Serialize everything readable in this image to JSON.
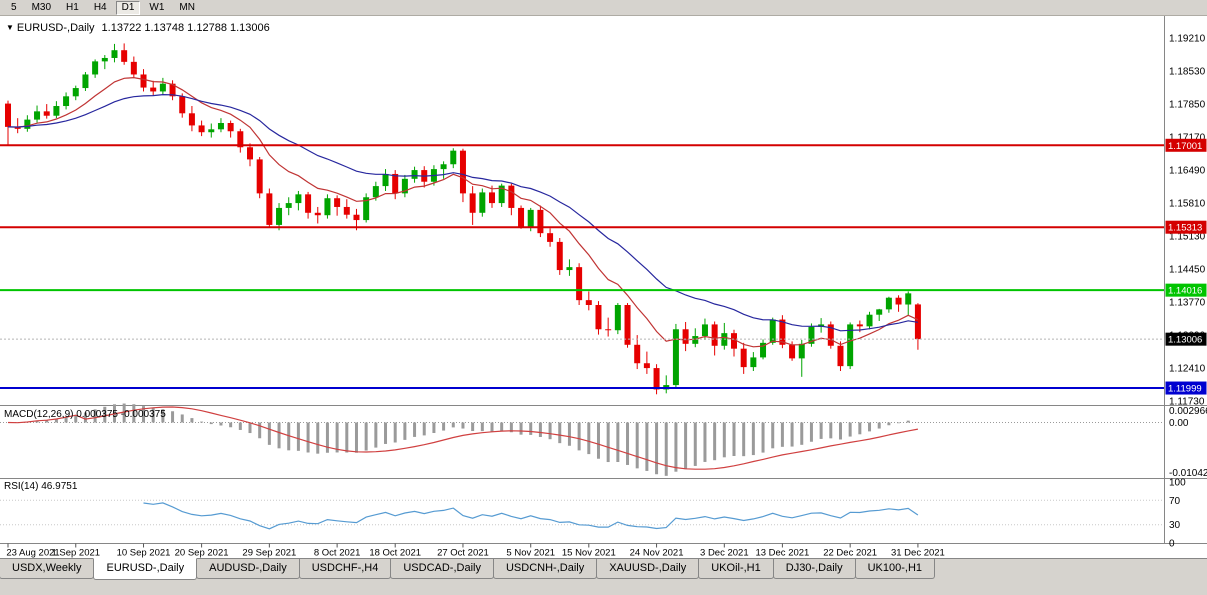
{
  "toolbar": {
    "timeframes": [
      {
        "label": "5",
        "active": false
      },
      {
        "label": "M30",
        "active": false
      },
      {
        "label": "H1",
        "active": false
      },
      {
        "label": "H4",
        "active": false
      },
      {
        "label": "D1",
        "active": true
      },
      {
        "label": "W1",
        "active": false
      },
      {
        "label": "MN",
        "active": false
      }
    ]
  },
  "chart_data": {
    "type": "candlestick",
    "symbol_title": "EURUSD-,Daily",
    "ohlc_readout": "1.13722 1.13748 1.12788 1.13006",
    "last_ohlc": {
      "open": 1.13722,
      "high": 1.13748,
      "low": 1.12788,
      "close": 1.13006
    },
    "colors": {
      "up": "#00a400",
      "down": "#e60000"
    },
    "price_axis": {
      "top_price": 1.195,
      "bottom_price": 1.1167,
      "labels": [
        "1.19210",
        "1.18530",
        "1.17850",
        "1.17170",
        "1.16490",
        "1.15810",
        "1.15130",
        "1.14450",
        "1.13770",
        "1.13090",
        "1.12410",
        "1.11730"
      ]
    },
    "hlines": [
      {
        "value": 1.17001,
        "label": "1.17001",
        "color": "#d40000",
        "width": 2
      },
      {
        "value": 1.15313,
        "label": "1.15313",
        "color": "#d40000",
        "width": 2
      },
      {
        "value": 1.14016,
        "label": "1.14016",
        "color": "#00c400",
        "width": 2
      },
      {
        "value": 1.11999,
        "label": "1.11999",
        "color": "#0000d0",
        "width": 2
      }
    ],
    "bid": {
      "value": 1.13006,
      "label": "1.13006",
      "tag_color": "#000000"
    },
    "moving_averages": [
      {
        "period": 10,
        "method": "ema",
        "color": "#c03434"
      },
      {
        "period": 24,
        "method": "ema",
        "color": "#27279e"
      }
    ],
    "candles": [
      [
        1.1786,
        1.1792,
        1.1699,
        1.1738
      ],
      [
        1.1738,
        1.1756,
        1.1725,
        1.1734
      ],
      [
        1.1734,
        1.1762,
        1.1728,
        1.1753
      ],
      [
        1.1753,
        1.1782,
        1.1747,
        1.177
      ],
      [
        1.177,
        1.1785,
        1.1755,
        1.1761
      ],
      [
        1.1761,
        1.1791,
        1.1756,
        1.1781
      ],
      [
        1.1781,
        1.1809,
        1.1774,
        1.1801
      ],
      [
        1.1801,
        1.1823,
        1.1793,
        1.1818
      ],
      [
        1.1818,
        1.1851,
        1.1812,
        1.1846
      ],
      [
        1.1846,
        1.1877,
        1.1839,
        1.1873
      ],
      [
        1.1873,
        1.1886,
        1.1857,
        1.188
      ],
      [
        1.188,
        1.1909,
        1.1871,
        1.1896
      ],
      [
        1.1896,
        1.191,
        1.1866,
        1.1872
      ],
      [
        1.1872,
        1.1883,
        1.1839,
        1.1846
      ],
      [
        1.1846,
        1.1857,
        1.1811,
        1.1819
      ],
      [
        1.1819,
        1.1833,
        1.1803,
        1.1811
      ],
      [
        1.1811,
        1.1839,
        1.1805,
        1.1827
      ],
      [
        1.1827,
        1.1834,
        1.1793,
        1.1801
      ],
      [
        1.1801,
        1.1807,
        1.1757,
        1.1766
      ],
      [
        1.1766,
        1.1781,
        1.1729,
        1.1741
      ],
      [
        1.1741,
        1.1751,
        1.1719,
        1.1727
      ],
      [
        1.1727,
        1.1745,
        1.1716,
        1.1733
      ],
      [
        1.1733,
        1.1756,
        1.1727,
        1.1746
      ],
      [
        1.1746,
        1.1751,
        1.1716,
        1.1729
      ],
      [
        1.1729,
        1.1734,
        1.1685,
        1.1696
      ],
      [
        1.1696,
        1.1704,
        1.1657,
        1.1671
      ],
      [
        1.1671,
        1.1676,
        1.1591,
        1.1601
      ],
      [
        1.1601,
        1.1611,
        1.153,
        1.1536
      ],
      [
        1.1536,
        1.1581,
        1.1525,
        1.1571
      ],
      [
        1.1571,
        1.1593,
        1.1556,
        1.1581
      ],
      [
        1.1581,
        1.1606,
        1.1566,
        1.1599
      ],
      [
        1.1599,
        1.1604,
        1.1549,
        1.1561
      ],
      [
        1.1561,
        1.1573,
        1.1539,
        1.1556
      ],
      [
        1.1556,
        1.1599,
        1.1549,
        1.1591
      ],
      [
        1.1591,
        1.1597,
        1.1555,
        1.1573
      ],
      [
        1.1573,
        1.1589,
        1.1549,
        1.1557
      ],
      [
        1.1557,
        1.1569,
        1.1525,
        1.1546
      ],
      [
        1.1546,
        1.1601,
        1.1541,
        1.1593
      ],
      [
        1.1593,
        1.1625,
        1.1586,
        1.1616
      ],
      [
        1.1616,
        1.1651,
        1.1606,
        1.1641
      ],
      [
        1.1641,
        1.1649,
        1.1589,
        1.1601
      ],
      [
        1.1601,
        1.1639,
        1.1593,
        1.1631
      ],
      [
        1.1631,
        1.1656,
        1.1623,
        1.1649
      ],
      [
        1.1649,
        1.1657,
        1.1613,
        1.1625
      ],
      [
        1.1625,
        1.1659,
        1.1617,
        1.1651
      ],
      [
        1.1651,
        1.1667,
        1.1631,
        1.1661
      ],
      [
        1.1661,
        1.1694,
        1.1653,
        1.1689
      ],
      [
        1.1689,
        1.1693,
        1.1583,
        1.1601
      ],
      [
        1.1601,
        1.1616,
        1.1536,
        1.1561
      ],
      [
        1.1561,
        1.1611,
        1.1553,
        1.1603
      ],
      [
        1.1603,
        1.1617,
        1.1571,
        1.1581
      ],
      [
        1.1581,
        1.1621,
        1.1573,
        1.1617
      ],
      [
        1.1617,
        1.1621,
        1.1556,
        1.1571
      ],
      [
        1.1571,
        1.1576,
        1.1528,
        1.1531
      ],
      [
        1.1531,
        1.1571,
        1.1523,
        1.1567
      ],
      [
        1.1567,
        1.1576,
        1.1511,
        1.1519
      ],
      [
        1.1519,
        1.1529,
        1.1491,
        1.1501
      ],
      [
        1.1501,
        1.1509,
        1.1433,
        1.1443
      ],
      [
        1.1443,
        1.1465,
        1.1431,
        1.1449
      ],
      [
        1.1449,
        1.1457,
        1.1371,
        1.1381
      ],
      [
        1.1381,
        1.1399,
        1.136,
        1.1371
      ],
      [
        1.1371,
        1.1379,
        1.131,
        1.1321
      ],
      [
        1.1321,
        1.1345,
        1.1306,
        1.1319
      ],
      [
        1.1319,
        1.1375,
        1.1311,
        1.1371
      ],
      [
        1.1371,
        1.1375,
        1.1283,
        1.1289
      ],
      [
        1.1289,
        1.1309,
        1.1239,
        1.1251
      ],
      [
        1.1251,
        1.1275,
        1.1229,
        1.1241
      ],
      [
        1.1241,
        1.1249,
        1.1187,
        1.1197
      ],
      [
        1.1197,
        1.1226,
        1.1189,
        1.1206
      ],
      [
        1.1206,
        1.1332,
        1.12,
        1.1321
      ],
      [
        1.1321,
        1.1336,
        1.1276,
        1.1291
      ],
      [
        1.1291,
        1.1323,
        1.1284,
        1.1307
      ],
      [
        1.1307,
        1.1343,
        1.1299,
        1.1331
      ],
      [
        1.1331,
        1.1337,
        1.1267,
        1.1287
      ],
      [
        1.1287,
        1.1334,
        1.1279,
        1.1313
      ],
      [
        1.1313,
        1.132,
        1.1265,
        1.1281
      ],
      [
        1.1281,
        1.1293,
        1.1229,
        1.1243
      ],
      [
        1.1243,
        1.1274,
        1.1235,
        1.1263
      ],
      [
        1.1263,
        1.13,
        1.1259,
        1.1293
      ],
      [
        1.1293,
        1.1345,
        1.1289,
        1.1341
      ],
      [
        1.1341,
        1.135,
        1.1282,
        1.1289
      ],
      [
        1.1289,
        1.1296,
        1.1256,
        1.1261
      ],
      [
        1.1261,
        1.1299,
        1.1223,
        1.1291
      ],
      [
        1.1291,
        1.1333,
        1.1285,
        1.1326
      ],
      [
        1.1326,
        1.1344,
        1.1314,
        1.1331
      ],
      [
        1.1331,
        1.1337,
        1.1281,
        1.1287
      ],
      [
        1.1287,
        1.1296,
        1.1235,
        1.1245
      ],
      [
        1.1245,
        1.1335,
        1.1239,
        1.1331
      ],
      [
        1.1331,
        1.1339,
        1.1315,
        1.1327
      ],
      [
        1.1327,
        1.1357,
        1.1321,
        1.1351
      ],
      [
        1.1351,
        1.1363,
        1.1338,
        1.1362
      ],
      [
        1.1362,
        1.1388,
        1.1355,
        1.1386
      ],
      [
        1.1386,
        1.1391,
        1.1357,
        1.1372
      ],
      [
        1.1372,
        1.1399,
        1.1349,
        1.1395
      ],
      [
        1.13722,
        1.13748,
        1.12788,
        1.13006
      ]
    ],
    "date_labels": [
      {
        "i": 0,
        "t": "23 Aug 2021"
      },
      {
        "i": 7,
        "t": "1 Sep 2021"
      },
      {
        "i": 14,
        "t": "10 Sep 2021"
      },
      {
        "i": 20,
        "t": "20 Sep 2021"
      },
      {
        "i": 27,
        "t": "29 Sep 2021"
      },
      {
        "i": 34,
        "t": "8 Oct 2021"
      },
      {
        "i": 40,
        "t": "18 Oct 2021"
      },
      {
        "i": 47,
        "t": "27 Oct 2021"
      },
      {
        "i": 54,
        "t": "5 Nov 2021"
      },
      {
        "i": 60,
        "t": "15 Nov 2021"
      },
      {
        "i": 67,
        "t": "24 Nov 2021"
      },
      {
        "i": 74,
        "t": "3 Dec 2021"
      },
      {
        "i": 80,
        "t": "13 Dec 2021"
      },
      {
        "i": 87,
        "t": "22 Dec 2021"
      },
      {
        "i": 94,
        "t": "31 Dec 2021"
      }
    ],
    "macd": {
      "title": "MACD(12,26,9) 0.000375 -0.000375",
      "fast": 12,
      "slow": 26,
      "signal": 9,
      "scale_max": 0.002966,
      "scale_min": -0.010425,
      "axis_labels": [
        "0.002966",
        "0.00",
        "-0.01042"
      ],
      "histogram_color": "#9a9a9a",
      "signal_color": "#d04040"
    },
    "rsi": {
      "title": "RSI(14) 46.9751",
      "period": 14,
      "value": 46.9751,
      "axis_labels": [
        "100",
        "70",
        "30",
        "0"
      ],
      "levels": [
        70,
        30
      ],
      "line_color": "#569bd2"
    }
  },
  "tabs": [
    {
      "label": "USDX,Weekly",
      "active": false
    },
    {
      "label": "EURUSD-,Daily",
      "active": true
    },
    {
      "label": "AUDUSD-,Daily",
      "active": false
    },
    {
      "label": "USDCHF-,H4",
      "active": false
    },
    {
      "label": "USDCAD-,Daily",
      "active": false
    },
    {
      "label": "USDCNH-,Daily",
      "active": false
    },
    {
      "label": "XAUUSD-,Daily",
      "active": false
    },
    {
      "label": "UKOil-,H1",
      "active": false
    },
    {
      "label": "DJ30-,Daily",
      "active": false
    },
    {
      "label": "UK100-,H1",
      "active": false
    }
  ]
}
